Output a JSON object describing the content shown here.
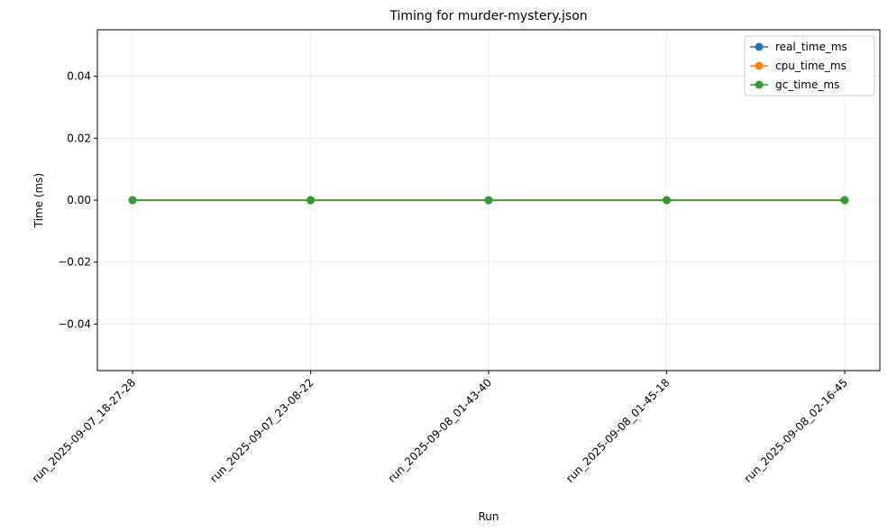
{
  "chart_data": {
    "type": "line",
    "title": "Timing for murder-mystery.json",
    "xlabel": "Run",
    "ylabel": "Time (ms)",
    "categories": [
      "run_2025-09-07_18-27-28",
      "run_2025-09-07_23-08-22",
      "run_2025-09-08_01-43-40",
      "run_2025-09-08_01-45-18",
      "run_2025-09-08_02-16-45"
    ],
    "ylim": [
      -0.055,
      0.055
    ],
    "yticks": [
      -0.04,
      -0.02,
      0.0,
      0.02,
      0.04
    ],
    "ytick_labels": [
      "−0.04",
      "−0.02",
      "0.00",
      "0.02",
      "0.04"
    ],
    "grid": true,
    "legend_position": "top-right",
    "series": [
      {
        "name": "real_time_ms",
        "color": "#1f77b4",
        "values": [
          0,
          0,
          0,
          0,
          0
        ]
      },
      {
        "name": "cpu_time_ms",
        "color": "#ff7f0e",
        "values": [
          0,
          0,
          0,
          0,
          0
        ]
      },
      {
        "name": "gc_time_ms",
        "color": "#2ca02c",
        "values": [
          0,
          0,
          0,
          0,
          0
        ]
      }
    ]
  }
}
